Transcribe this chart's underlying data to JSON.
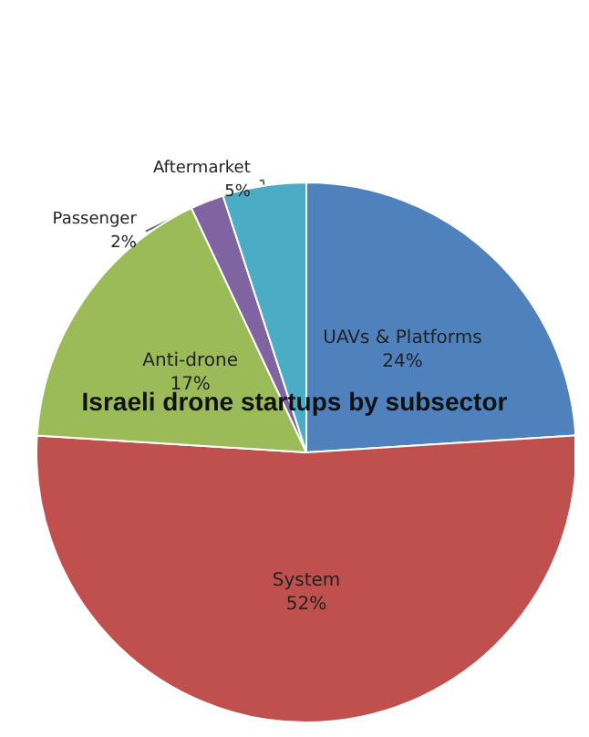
{
  "chart_data": {
    "type": "pie",
    "title": "Israeli drone startups by subsector",
    "categories": [
      "UAVs & Platforms",
      "System",
      "Anti-drone",
      "Passenger",
      "Aftermarket"
    ],
    "values": [
      24,
      52,
      17,
      2,
      5
    ],
    "colors": [
      "#4f81bd",
      "#c0504d",
      "#9bbb59",
      "#8064a2",
      "#4bacc6"
    ],
    "value_labels": [
      "24%",
      "52%",
      "17%",
      "2%",
      "5%"
    ],
    "legend": false
  }
}
